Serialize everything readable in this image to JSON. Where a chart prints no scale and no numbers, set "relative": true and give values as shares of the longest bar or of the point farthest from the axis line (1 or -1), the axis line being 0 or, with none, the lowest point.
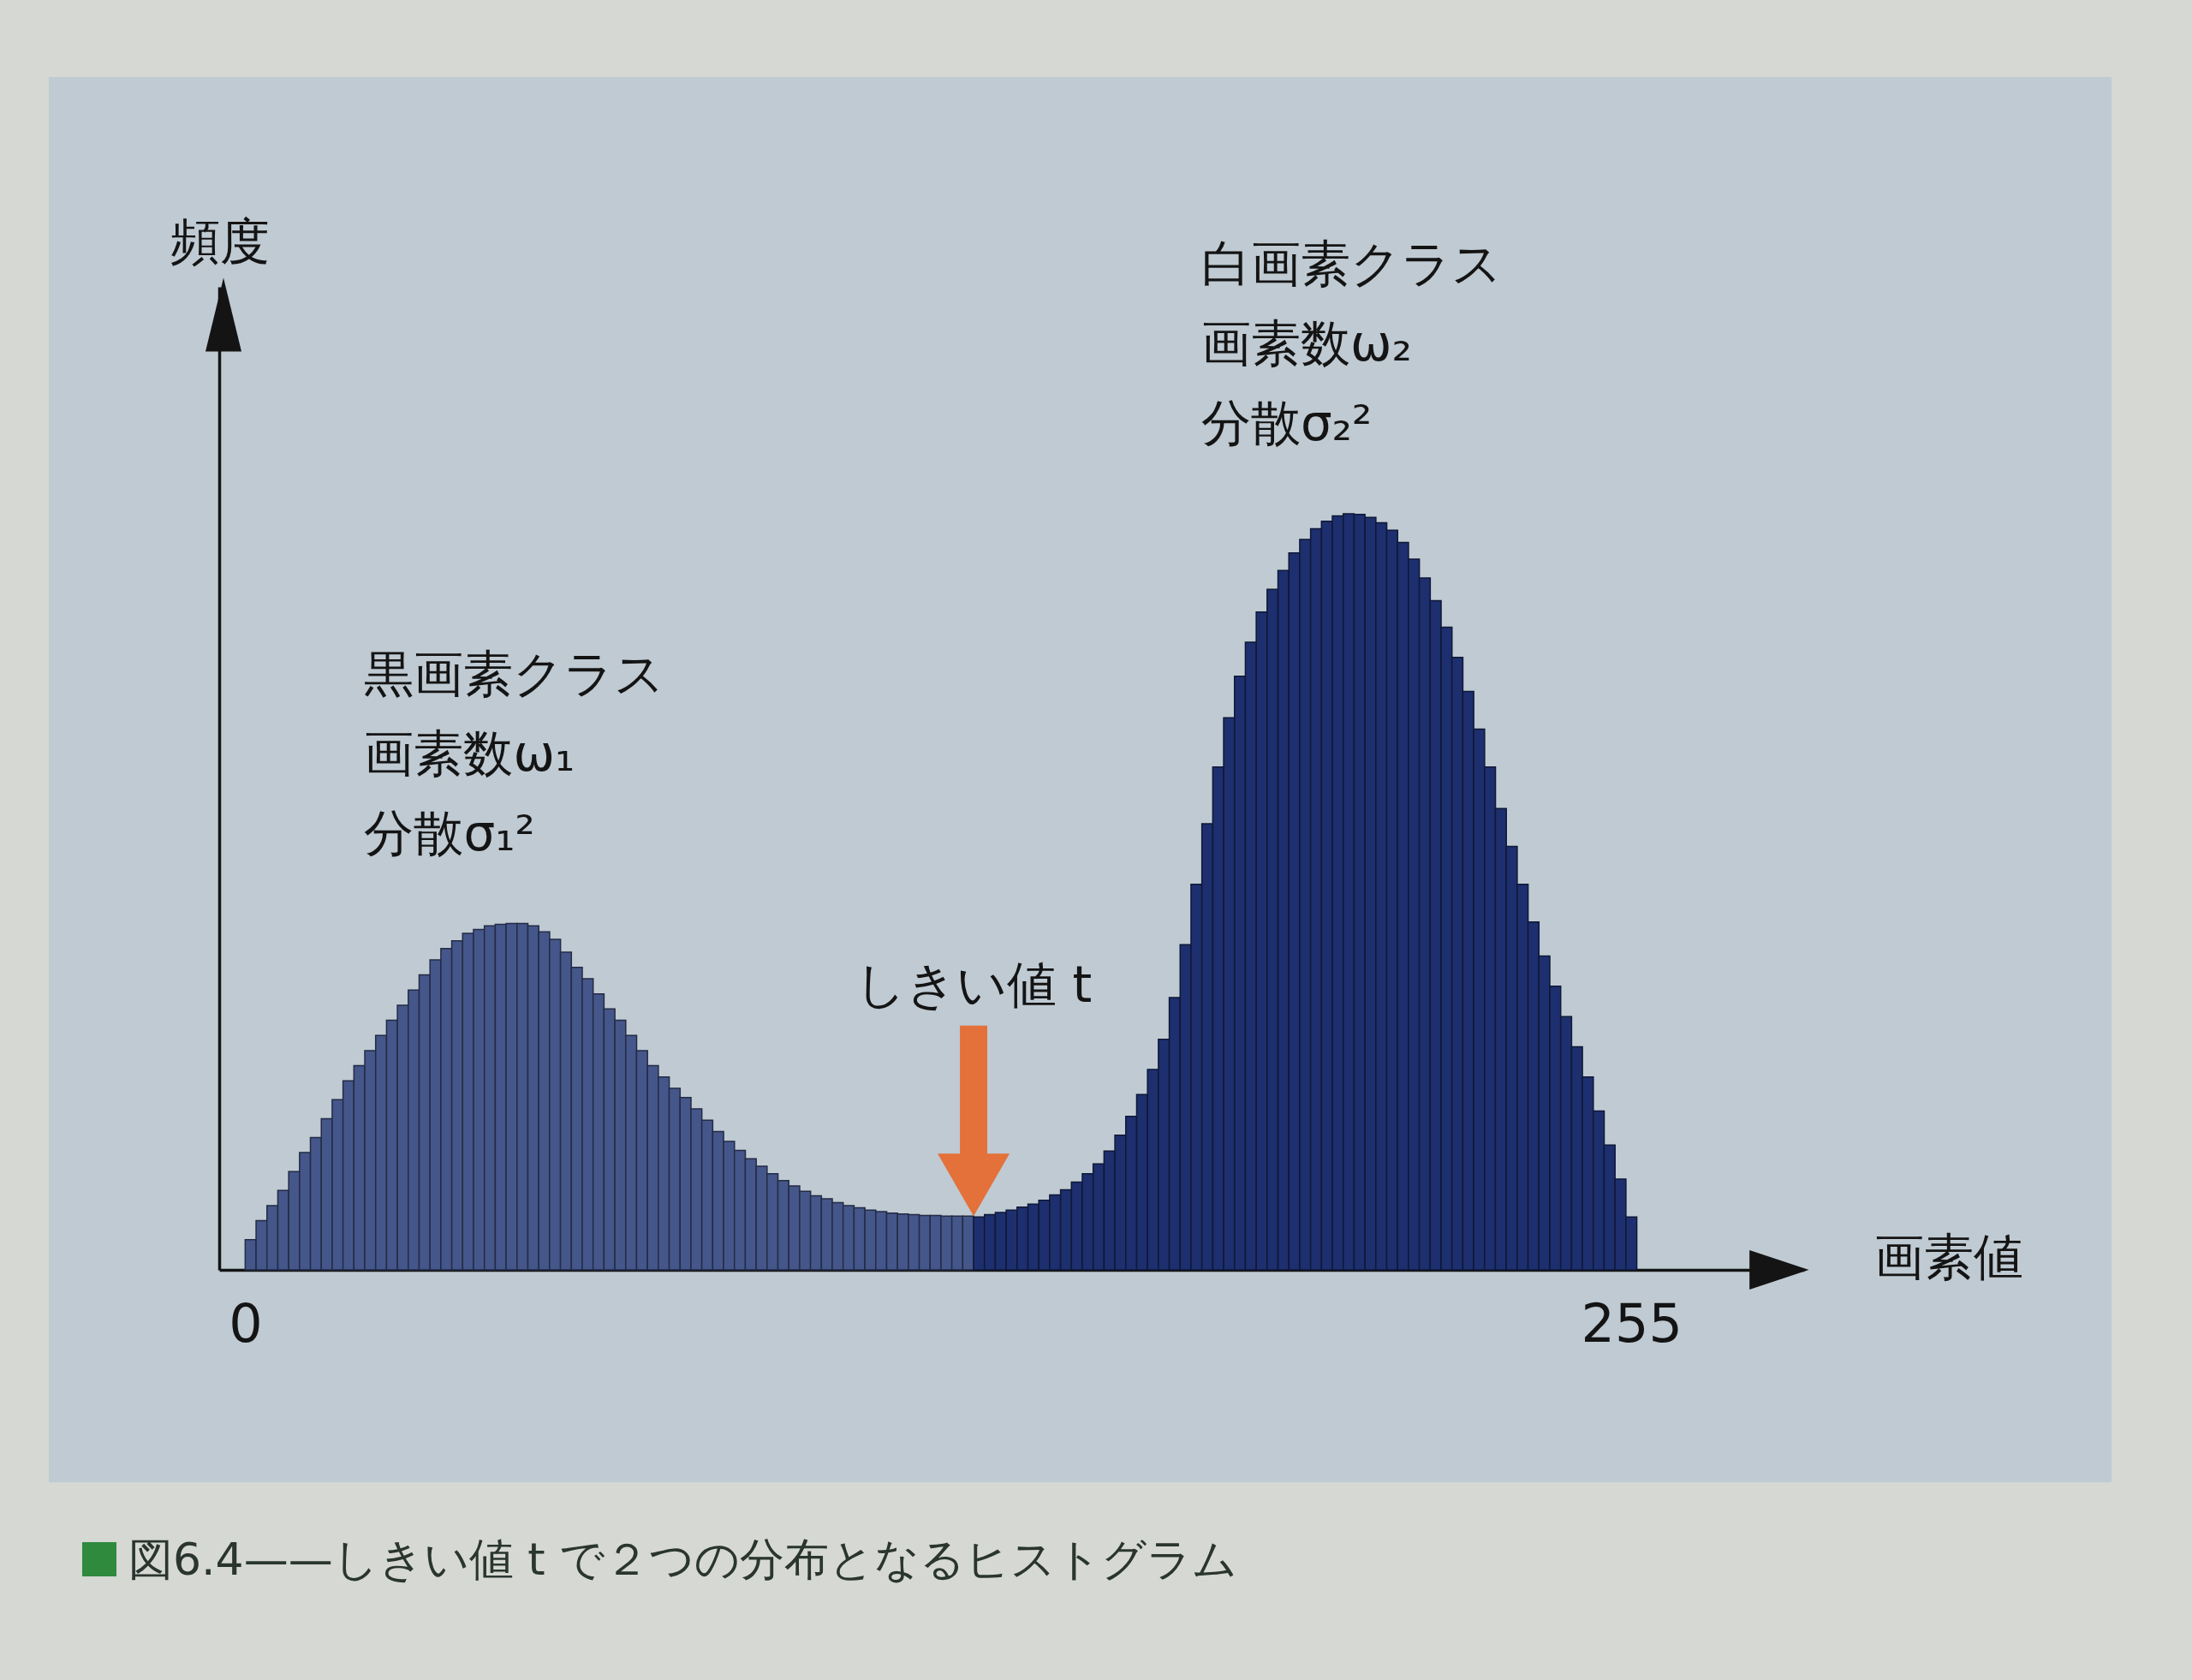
{
  "chart_data": {
    "type": "bar",
    "title": "図6.4——しきい値 t で２つの分布となるヒストグラム",
    "xlabel": "画素値",
    "ylabel": "頻度",
    "relative": true,
    "xlim": [
      -4,
      286
    ],
    "xticks": [
      0,
      255
    ],
    "series": [
      {
        "color": "#45568a",
        "x": [
          1,
          3,
          5,
          7,
          9,
          11,
          13,
          15,
          17,
          19,
          21,
          23,
          25,
          27,
          29,
          31,
          33,
          35,
          37,
          39,
          41,
          43,
          45,
          47,
          49,
          51,
          53,
          55,
          57,
          59,
          61,
          63,
          65,
          67,
          69,
          71,
          73,
          75,
          77,
          79,
          81,
          83,
          85,
          87,
          89,
          91,
          93,
          95,
          97,
          99,
          101,
          103,
          105,
          107,
          109,
          111,
          113,
          115,
          117,
          119,
          121,
          123,
          125,
          127,
          129,
          131,
          133
        ],
        "values": [
          0.04,
          0.065,
          0.085,
          0.105,
          0.13,
          0.155,
          0.175,
          0.2,
          0.225,
          0.25,
          0.27,
          0.29,
          0.31,
          0.33,
          0.35,
          0.37,
          0.39,
          0.41,
          0.425,
          0.435,
          0.445,
          0.45,
          0.455,
          0.457,
          0.458,
          0.458,
          0.455,
          0.447,
          0.437,
          0.42,
          0.4,
          0.385,
          0.365,
          0.345,
          0.33,
          0.31,
          0.29,
          0.27,
          0.255,
          0.24,
          0.228,
          0.213,
          0.198,
          0.183,
          0.17,
          0.158,
          0.147,
          0.137,
          0.127,
          0.118,
          0.111,
          0.104,
          0.098,
          0.094,
          0.089,
          0.085,
          0.082,
          0.079,
          0.077,
          0.075,
          0.074,
          0.073,
          0.072,
          0.072,
          0.071,
          0.071,
          0.071
        ]
      },
      {
        "color": "#1d2f6e",
        "x": [
          135,
          137,
          139,
          141,
          143,
          145,
          147,
          149,
          151,
          153,
          155,
          157,
          159,
          161,
          163,
          165,
          167,
          169,
          171,
          173,
          175,
          177,
          179,
          181,
          183,
          185,
          187,
          189,
          191,
          193,
          195,
          197,
          199,
          201,
          203,
          205,
          207,
          209,
          211,
          213,
          215,
          217,
          219,
          221,
          223,
          225,
          227,
          229,
          231,
          233,
          235,
          237,
          239,
          241,
          243,
          245,
          247,
          249,
          251,
          253,
          255
        ],
        "values": [
          0.07,
          0.073,
          0.076,
          0.079,
          0.083,
          0.087,
          0.092,
          0.099,
          0.106,
          0.116,
          0.127,
          0.14,
          0.157,
          0.178,
          0.203,
          0.232,
          0.265,
          0.305,
          0.36,
          0.43,
          0.51,
          0.59,
          0.665,
          0.73,
          0.785,
          0.83,
          0.87,
          0.9,
          0.925,
          0.948,
          0.966,
          0.98,
          0.99,
          0.997,
          1,
          0.999,
          0.995,
          0.988,
          0.978,
          0.962,
          0.94,
          0.915,
          0.885,
          0.85,
          0.81,
          0.765,
          0.715,
          0.665,
          0.61,
          0.56,
          0.51,
          0.46,
          0.415,
          0.375,
          0.335,
          0.295,
          0.255,
          0.21,
          0.165,
          0.12,
          0.07
        ]
      }
    ],
    "annotations": [
      "黒画素クラス",
      "画素数ω₁",
      "分散σ₁²",
      "白画素クラス",
      "画素数ω₂",
      "分散σ₂²",
      "しきい値 t"
    ]
  }
}
